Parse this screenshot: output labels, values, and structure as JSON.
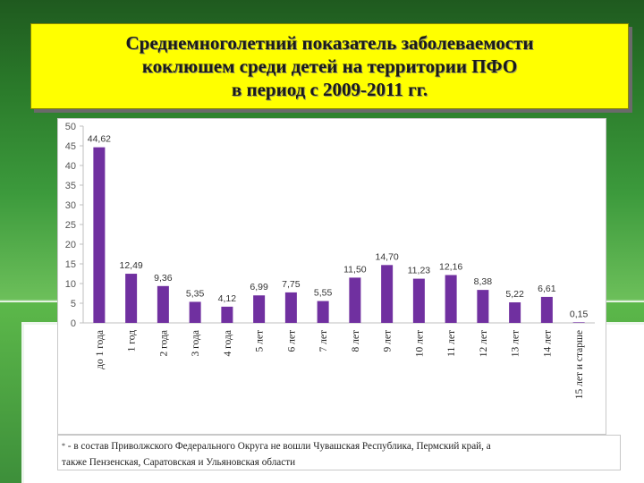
{
  "slide": {
    "title_lines": [
      "Среднемноголетний показатель заболеваемости",
      "коклюшем среди детей на территории ПФО",
      "в период с 2009-2011 гг."
    ],
    "footnote_mark": "*",
    "footnote_line1": " - в состав Приволжского Федерального Округа не вошли Чувашская Республика, Пермский край, а",
    "footnote_line2": "также Пензенская, Саратовская и Ульяновская области",
    "colors": {
      "bar": "#7030a0",
      "title_bg": "#ffff00",
      "grid": "#d9d9d9"
    }
  },
  "chart_data": {
    "type": "bar",
    "categories": [
      "до 1 года",
      "1 год",
      "2 года",
      "3 года",
      "4 года",
      "5 лет",
      "6 лет",
      "7 лет",
      "8 лет",
      "9 лет",
      "10 лет",
      "11 лет",
      "12 лет",
      "13 лет",
      "14 лет",
      "15 лет и старше"
    ],
    "values": [
      44.62,
      12.49,
      9.36,
      5.35,
      4.12,
      6.99,
      7.75,
      5.55,
      11.5,
      14.7,
      11.23,
      12.16,
      8.38,
      5.22,
      6.61,
      0.15
    ],
    "data_labels": [
      "44,62",
      "12,49",
      "9,36",
      "5,35",
      "4,12",
      "6,99",
      "7,75",
      "5,55",
      "11,50",
      "14,70",
      "11,23",
      "12,16",
      "8,38",
      "5,22",
      "6,61",
      "0,15"
    ],
    "y_ticks": [
      "0",
      "5",
      "10",
      "15",
      "20",
      "25",
      "30",
      "35",
      "40",
      "45",
      "50"
    ],
    "ylim": [
      0,
      50
    ],
    "grid": false,
    "legend": "none"
  }
}
